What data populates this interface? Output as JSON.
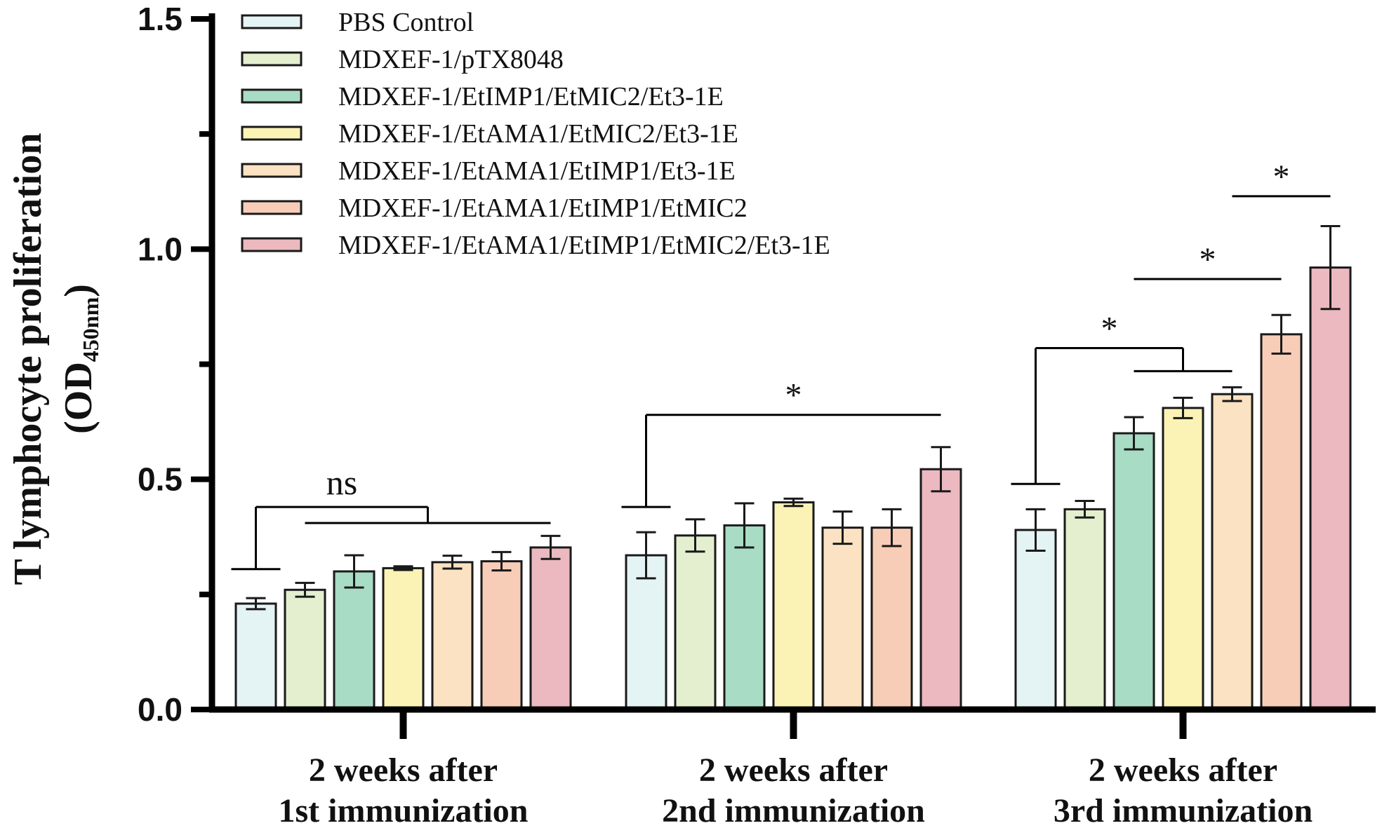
{
  "chart_data": {
    "type": "bar",
    "title": "",
    "xlabel": "",
    "ylabel": "T lymphocyte proliferation",
    "ylabel_unit_prefix": "(OD",
    "ylabel_unit_sub": "450nm",
    "ylabel_unit_suffix": ")",
    "ylim": [
      0,
      1.5
    ],
    "yticks": [
      0.0,
      0.5,
      1.0,
      1.5
    ],
    "ytick_labels": [
      "0.0",
      "0.5",
      "1.0",
      "1.5"
    ],
    "categories": [
      [
        "2 weeks after",
        "1st immunization"
      ],
      [
        "2 weeks after",
        "2nd immunization"
      ],
      [
        "2 weeks after",
        "3rd immunization"
      ]
    ],
    "legend_position": "top-left",
    "series": [
      {
        "name": "PBS Control",
        "color": "#e4f3f3",
        "values": [
          0.23,
          0.335,
          0.39
        ],
        "errors": [
          0.012,
          0.05,
          0.045
        ]
      },
      {
        "name": "MDXEF-1/pTX8048",
        "color": "#e3efcf",
        "values": [
          0.26,
          0.378,
          0.435
        ],
        "errors": [
          0.015,
          0.035,
          0.018
        ]
      },
      {
        "name": "MDXEF-1/EtIMP1/EtMIC2/Et3-1E",
        "color": "#a8dcc5",
        "values": [
          0.3,
          0.4,
          0.6
        ],
        "errors": [
          0.035,
          0.048,
          0.035
        ]
      },
      {
        "name": "MDXEF-1/EtAMA1/EtMIC2/Et3-1E",
        "color": "#fbf3b6",
        "values": [
          0.307,
          0.45,
          0.655
        ],
        "errors": [
          0.004,
          0.008,
          0.022
        ]
      },
      {
        "name": "MDXEF-1/EtAMA1/EtIMP1/Et3-1E",
        "color": "#fbe2c2",
        "values": [
          0.32,
          0.395,
          0.685
        ],
        "errors": [
          0.014,
          0.035,
          0.015
        ]
      },
      {
        "name": "MDXEF-1/EtAMA1/EtIMP1/EtMIC2",
        "color": "#f8cdb8",
        "values": [
          0.322,
          0.395,
          0.815
        ],
        "errors": [
          0.02,
          0.04,
          0.042
        ]
      },
      {
        "name": "MDXEF-1/EtAMA1/EtIMP1/EtMIC2/Et3-1E",
        "color": "#ebb9bf",
        "values": [
          0.352,
          0.522,
          0.96
        ],
        "errors": [
          0.025,
          0.048,
          0.09
        ]
      }
    ],
    "annotations": [
      {
        "label": "ns",
        "group": 0,
        "left_series": [
          0
        ],
        "right_series": [
          1,
          6
        ],
        "left_y": 0.305,
        "right_y": 0.405,
        "top_y": 0.44
      },
      {
        "label": "*",
        "group": 1,
        "left_series": [
          0
        ],
        "right_series": [
          6,
          6
        ],
        "left_y": 0.44,
        "right_y": 0.64,
        "top_y": 0.64
      },
      {
        "label": "*",
        "group": 2,
        "left_series": [
          0
        ],
        "right_series": [
          2,
          4
        ],
        "left_y": 0.49,
        "right_y": 0.735,
        "top_y": 0.785
      },
      {
        "label": "*",
        "group": 2,
        "left_series": [
          2
        ],
        "right_series": [
          5,
          5
        ],
        "left_y": 0.935,
        "right_y": 0.935,
        "top_y": 0.935
      },
      {
        "label": "*",
        "group": 2,
        "left_series": [
          4
        ],
        "right_series": [
          6,
          6
        ],
        "left_y": 1.115,
        "right_y": 1.115,
        "top_y": 1.115
      }
    ]
  }
}
